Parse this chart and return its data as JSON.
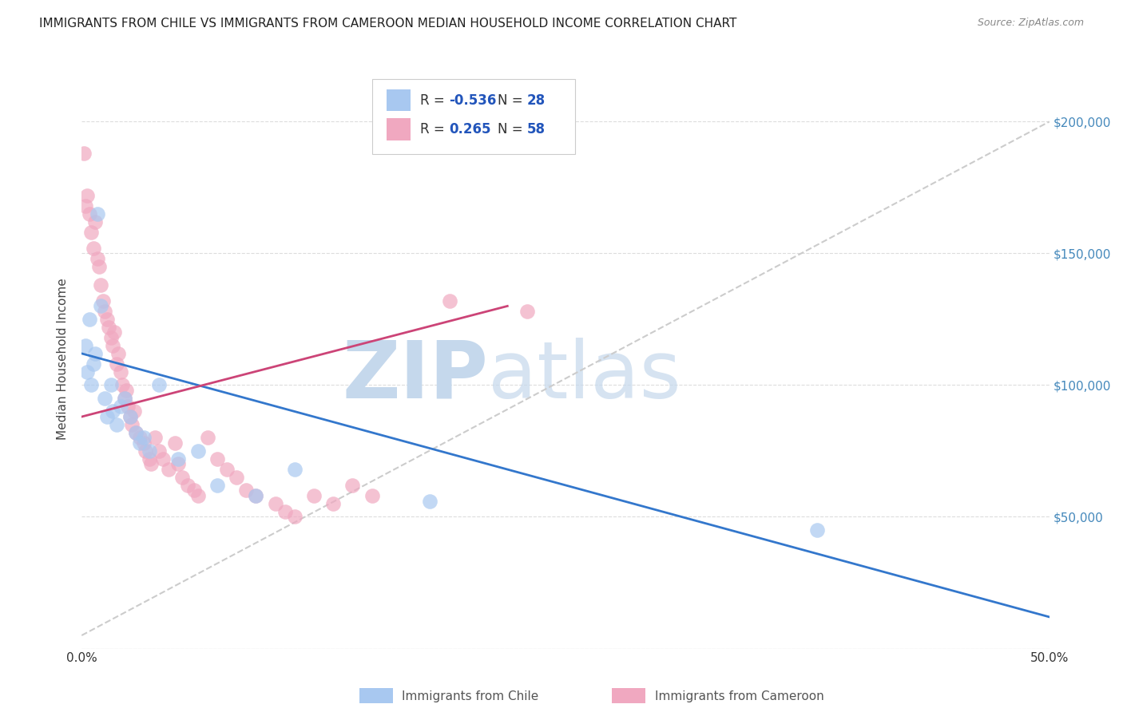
{
  "title": "IMMIGRANTS FROM CHILE VS IMMIGRANTS FROM CAMEROON MEDIAN HOUSEHOLD INCOME CORRELATION CHART",
  "source": "Source: ZipAtlas.com",
  "ylabel": "Median Household Income",
  "xlim": [
    0.0,
    0.5
  ],
  "ylim": [
    0,
    220000
  ],
  "yticks": [
    0,
    50000,
    100000,
    150000,
    200000
  ],
  "xticks": [
    0.0,
    0.1,
    0.2,
    0.3,
    0.4,
    0.5
  ],
  "watermark_zip": "ZIP",
  "watermark_atlas": "atlas",
  "watermark_color": "#d0e4f0",
  "background_color": "#ffffff",
  "chile_color": "#a8c8f0",
  "cameroon_color": "#f0a8c0",
  "chile_line_color": "#3377cc",
  "cameroon_line_color": "#cc4477",
  "ref_line_color": "#cccccc",
  "legend_R_chile": "-0.536",
  "legend_N_chile": "28",
  "legend_R_cameroon": "0.265",
  "legend_N_cameroon": "58",
  "chile_scatter_x": [
    0.002,
    0.003,
    0.004,
    0.005,
    0.006,
    0.007,
    0.008,
    0.01,
    0.012,
    0.013,
    0.015,
    0.016,
    0.018,
    0.02,
    0.022,
    0.025,
    0.028,
    0.03,
    0.032,
    0.035,
    0.04,
    0.05,
    0.06,
    0.07,
    0.09,
    0.11,
    0.18,
    0.38
  ],
  "chile_scatter_y": [
    115000,
    105000,
    125000,
    100000,
    108000,
    112000,
    165000,
    130000,
    95000,
    88000,
    100000,
    90000,
    85000,
    92000,
    95000,
    88000,
    82000,
    78000,
    80000,
    75000,
    100000,
    72000,
    75000,
    62000,
    58000,
    68000,
    56000,
    45000
  ],
  "cameroon_scatter_x": [
    0.001,
    0.002,
    0.003,
    0.004,
    0.005,
    0.006,
    0.007,
    0.008,
    0.009,
    0.01,
    0.011,
    0.012,
    0.013,
    0.014,
    0.015,
    0.016,
    0.017,
    0.018,
    0.019,
    0.02,
    0.021,
    0.022,
    0.023,
    0.024,
    0.025,
    0.026,
    0.027,
    0.028,
    0.03,
    0.032,
    0.033,
    0.035,
    0.036,
    0.038,
    0.04,
    0.042,
    0.045,
    0.048,
    0.05,
    0.052,
    0.055,
    0.058,
    0.06,
    0.065,
    0.07,
    0.075,
    0.08,
    0.085,
    0.09,
    0.1,
    0.105,
    0.11,
    0.12,
    0.13,
    0.14,
    0.15,
    0.19,
    0.23
  ],
  "cameroon_scatter_y": [
    188000,
    168000,
    172000,
    165000,
    158000,
    152000,
    162000,
    148000,
    145000,
    138000,
    132000,
    128000,
    125000,
    122000,
    118000,
    115000,
    120000,
    108000,
    112000,
    105000,
    100000,
    95000,
    98000,
    92000,
    88000,
    85000,
    90000,
    82000,
    80000,
    78000,
    75000,
    72000,
    70000,
    80000,
    75000,
    72000,
    68000,
    78000,
    70000,
    65000,
    62000,
    60000,
    58000,
    80000,
    72000,
    68000,
    65000,
    60000,
    58000,
    55000,
    52000,
    50000,
    58000,
    55000,
    62000,
    58000,
    132000,
    128000
  ],
  "chile_line_x": [
    0.0,
    0.5
  ],
  "chile_line_y": [
    112000,
    12000
  ],
  "cameroon_line_x": [
    0.0,
    0.22
  ],
  "cameroon_line_y": [
    88000,
    130000
  ]
}
